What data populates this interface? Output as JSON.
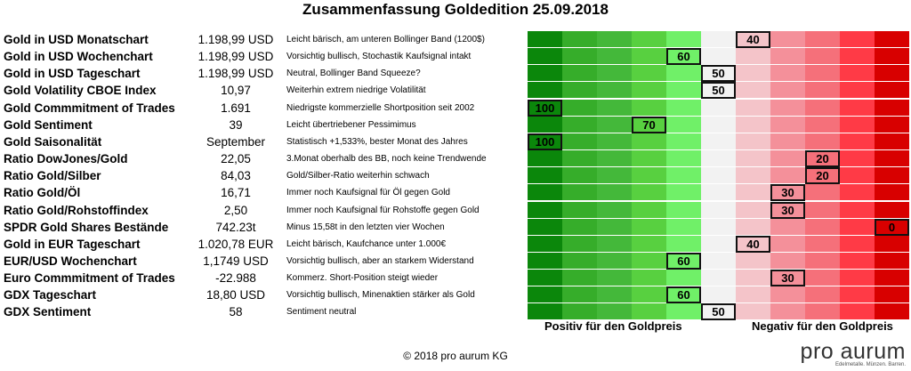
{
  "chart_data": {
    "type": "table",
    "title": "Zusammenfassung Goldedition 25.09.2018",
    "scale": [
      100,
      90,
      80,
      70,
      60,
      50,
      40,
      30,
      20,
      10,
      0
    ],
    "scale_colors": [
      "#0b870b",
      "#36ad2a",
      "#44b83a",
      "#58d040",
      "#70f068",
      "#f2f2f2",
      "#f4c4c9",
      "#f4909a",
      "#f5707a",
      "#ff3a46",
      "#d80000"
    ],
    "rows": [
      {
        "label": "Gold in USD Monatschart",
        "value": "1.198,99 USD",
        "comment": "Leicht bärisch, am unteren Bollinger Band (1200$)",
        "score": 40
      },
      {
        "label": "Gold in USD Wochenchart",
        "value": "1.198,99 USD",
        "comment": "Vorsichtig bullisch, Stochastik Kaufsignal intakt",
        "score": 60
      },
      {
        "label": "Gold in USD Tageschart",
        "value": "1.198,99 USD",
        "comment": "Neutral, Bollinger Band Squeeze?",
        "score": 50
      },
      {
        "label": "Gold Volatility CBOE Index",
        "value": "10,97",
        "comment": "Weiterhin extrem niedrige Volatilität",
        "score": 50
      },
      {
        "label": "Gold Commmitment of Trades",
        "value": "1.691",
        "comment": "Niedrigste kommerzielle Shortposition seit 2002",
        "score": 100
      },
      {
        "label": "Gold Sentiment",
        "value": "39",
        "comment": "Leicht übertriebener Pessimimus",
        "score": 70
      },
      {
        "label": "Gold Saisonalität",
        "value": "September",
        "comment": "Statistisch +1,533%, bester Monat des Jahres",
        "score": 100
      },
      {
        "label": "Ratio DowJones/Gold",
        "value": "22,05",
        "comment": "3.Monat oberhalb des BB, noch keine Trendwende",
        "score": 20
      },
      {
        "label": "Ratio Gold/Silber",
        "value": "84,03",
        "comment": "Gold/Silber-Ratio weiterhin schwach",
        "score": 20
      },
      {
        "label": "Ratio Gold/Öl",
        "value": "16,71",
        "comment": "Immer noch Kaufsignal für Öl gegen Gold",
        "score": 30
      },
      {
        "label": "Ratio Gold/Rohstoffindex",
        "value": "2,50",
        "comment": "Immer noch Kaufsignal für Rohstoffe gegen Gold",
        "score": 30
      },
      {
        "label": "SPDR Gold Shares Bestände",
        "value": "742.23t",
        "comment": "Minus 15,58t in den letzten vier Wochen",
        "score": 0
      },
      {
        "label": "Gold in EUR Tageschart",
        "value": "1.020,78 EUR",
        "comment": "Leicht bärisch, Kaufchance unter 1.000€",
        "score": 40
      },
      {
        "label": "EUR/USD Wochenchart",
        "value": "1,1749 USD",
        "comment": "Vorsichtig bullisch, aber an starkem Widerstand",
        "score": 60
      },
      {
        "label": "Euro Commmitment of Trades",
        "value": "-22.988",
        "comment": "Kommerz. Short-Position steigt wieder",
        "score": 30
      },
      {
        "label": "GDX Tageschart",
        "value": "18,80 USD",
        "comment": "Vorsichtig bullisch, Minenaktien stärker als Gold",
        "score": 60
      },
      {
        "label": "GDX Sentiment",
        "value": "58",
        "comment": "Sentiment neutral",
        "score": 50
      }
    ],
    "legend_left": "Positiv für den Goldpreis",
    "legend_right": "Negativ für den Goldpreis"
  },
  "footer": "© 2018 pro aurum KG",
  "logo": {
    "name": "pro aurum",
    "tagline": "Edelmetalle. Münzen. Barren."
  }
}
